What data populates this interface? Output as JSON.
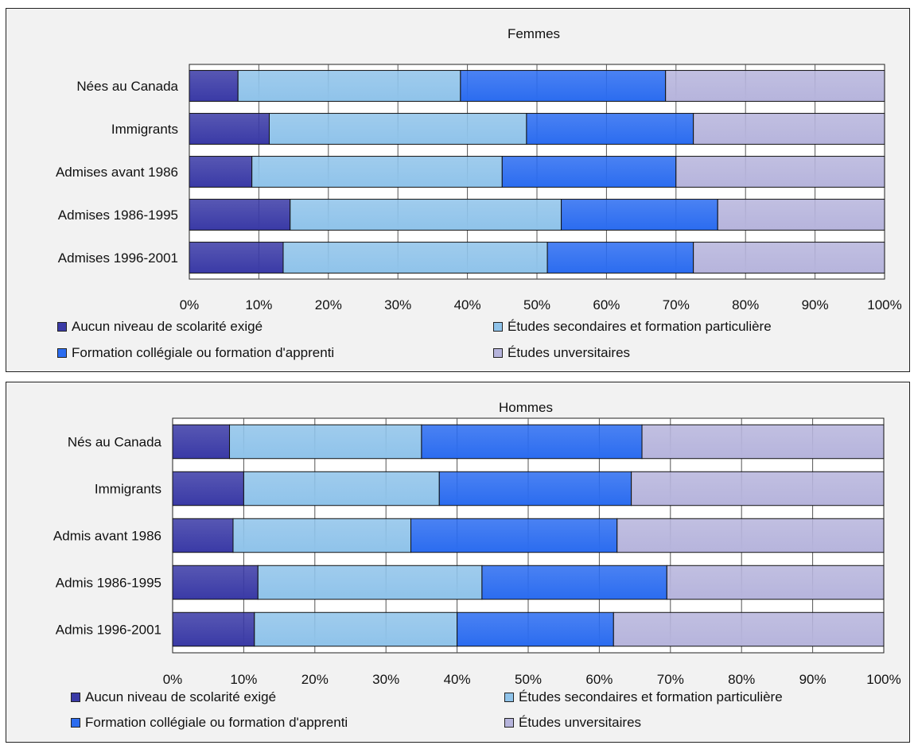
{
  "legend": [
    {
      "label": "Aucun niveau de scolarité exigé",
      "color": "#3a3aa6"
    },
    {
      "label": "Études secondaires et formation particulière",
      "color": "#8fc3ea"
    },
    {
      "label": "Formation collégiale ou formation d'apprenti",
      "color": "#2b6cf0"
    },
    {
      "label": "Études unversitaires",
      "color": "#b6b4dc"
    }
  ],
  "chart_data": [
    {
      "type": "bar",
      "orientation": "horizontal",
      "stacked": "percent",
      "title": "Femmes",
      "categories": [
        "Nées au Canada",
        "Immigrants",
        "Admises avant 1986",
        "Admises 1986-1995",
        "Admises 1996-2001"
      ],
      "series": [
        {
          "name": "Aucun niveau de scolarité exigé",
          "values": [
            7,
            11.5,
            9,
            14.5,
            13.5
          ]
        },
        {
          "name": "Études secondaires et formation particulière",
          "values": [
            32,
            37,
            36,
            39,
            38
          ]
        },
        {
          "name": "Formation collégiale ou formation d'apprenti",
          "values": [
            29.5,
            24,
            25,
            22.5,
            21
          ]
        },
        {
          "name": "Études unversitaires",
          "values": [
            31.5,
            27.5,
            30,
            24,
            27.5
          ]
        }
      ],
      "xlim": [
        0,
        100
      ],
      "xticks": [
        "0%",
        "10%",
        "20%",
        "30%",
        "40%",
        "50%",
        "60%",
        "70%",
        "80%",
        "90%",
        "100%"
      ],
      "grid": true,
      "legend_position": "bottom"
    },
    {
      "type": "bar",
      "orientation": "horizontal",
      "stacked": "percent",
      "title": "Hommes",
      "categories": [
        "Nés au Canada",
        "Immigrants",
        "Admis avant 1986",
        "Admis 1986-1995",
        "Admis 1996-2001"
      ],
      "series": [
        {
          "name": "Aucun niveau de scolarité exigé",
          "values": [
            8,
            10,
            8.5,
            12,
            11.5
          ]
        },
        {
          "name": "Études secondaires et formation particulière",
          "values": [
            27,
            27.5,
            25,
            31.5,
            28.5
          ]
        },
        {
          "name": "Formation collégiale ou formation d'apprenti",
          "values": [
            31,
            27,
            29,
            26,
            22
          ]
        },
        {
          "name": "Études unversitaires",
          "values": [
            34,
            35.5,
            37.5,
            30.5,
            38
          ]
        }
      ],
      "xlim": [
        0,
        100
      ],
      "xticks": [
        "0%",
        "10%",
        "20%",
        "30%",
        "40%",
        "50%",
        "60%",
        "70%",
        "80%",
        "90%",
        "100%"
      ],
      "grid": true,
      "legend_position": "bottom"
    }
  ]
}
